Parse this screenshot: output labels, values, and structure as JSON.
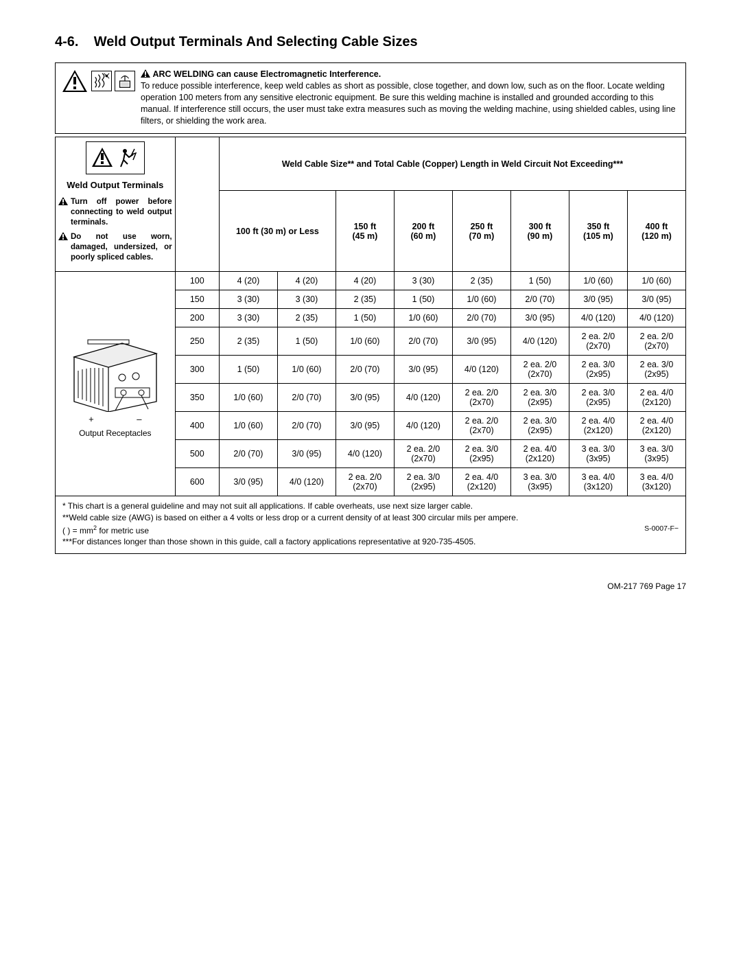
{
  "section": {
    "number": "4-6.",
    "title": "Weld Output Terminals And Selecting Cable Sizes"
  },
  "warning_box": {
    "heading": "ARC WELDING can cause Electromagnetic Interference.",
    "body": "To reduce possible interference, keep weld cables as short as possible, close together, and down low, such as on the floor. Locate welding operation 100 meters from any sensitive electronic equipment. Be sure this welding machine is installed and grounded according to this manual. If interference still occurs, the user must take extra measures such as moving the welding machine, using shielded cables, using line filters, or shielding the work area."
  },
  "left_header": {
    "title": "Weld Output Terminals",
    "warn1": "Turn off power before connecting to weld output terminals.",
    "warn2": "Do not use worn, damaged, undersized, or poorly spliced cables."
  },
  "span_header": "Weld Cable Size** and Total Cable (Copper) Length in Weld Circuit Not Exceeding***",
  "col_headers": {
    "c100_label": "100 ft (30 m) or Less",
    "c150a": "150 ft",
    "c150b": "(45 m)",
    "c200a": "200 ft",
    "c200b": "(60 m)",
    "c250a": "250 ft",
    "c250b": "(70 m)",
    "c300a": "300 ft",
    "c300b": "(90 m)",
    "c350a": "350 ft",
    "c350b": "(105 m)",
    "c400a": "400 ft",
    "c400b": "(120 m)"
  },
  "machine": {
    "plus": "+",
    "minus": "–",
    "label": "Output Receptacles"
  },
  "rows": [
    {
      "amp": "100",
      "c": [
        "4 (20)",
        "4 (20)",
        "4 (20)",
        "3 (30)",
        "2 (35)",
        "1 (50)",
        "1/0 (60)",
        "1/0 (60)"
      ]
    },
    {
      "amp": "150",
      "c": [
        "3 (30)",
        "3 (30)",
        "2 (35)",
        "1 (50)",
        "1/0 (60)",
        "2/0 (70)",
        "3/0 (95)",
        "3/0 (95)"
      ]
    },
    {
      "amp": "200",
      "c": [
        "3 (30)",
        "2 (35)",
        "1 (50)",
        "1/0 (60)",
        "2/0 (70)",
        "3/0 (95)",
        "4/0 (120)",
        "4/0 (120)"
      ]
    },
    {
      "amp": "250",
      "c": [
        "2 (35)",
        "1 (50)",
        "1/0 (60)",
        "2/0 (70)",
        "3/0 (95)",
        "4/0 (120)",
        "2 ea. 2/0 (2x70)",
        "2 ea. 2/0 (2x70)"
      ]
    },
    {
      "amp": "300",
      "c": [
        "1 (50)",
        "1/0 (60)",
        "2/0 (70)",
        "3/0 (95)",
        "4/0 (120)",
        "2 ea. 2/0 (2x70)",
        "2 ea. 3/0 (2x95)",
        "2 ea. 3/0 (2x95)"
      ]
    },
    {
      "amp": "350",
      "c": [
        "1/0 (60)",
        "2/0 (70)",
        "3/0 (95)",
        "4/0 (120)",
        "2 ea. 2/0 (2x70)",
        "2 ea. 3/0 (2x95)",
        "2 ea. 3/0 (2x95)",
        "2 ea. 4/0 (2x120)"
      ]
    },
    {
      "amp": "400",
      "c": [
        "1/0 (60)",
        "2/0 (70)",
        "3/0 (95)",
        "4/0 (120)",
        "2 ea. 2/0 (2x70)",
        "2 ea. 3/0 (2x95)",
        "2 ea. 4/0 (2x120)",
        "2 ea. 4/0 (2x120)"
      ]
    },
    {
      "amp": "500",
      "c": [
        "2/0 (70)",
        "3/0 (95)",
        "4/0 (120)",
        "2 ea. 2/0 (2x70)",
        "2 ea. 3/0 (2x95)",
        "2 ea. 4/0 (2x120)",
        "3 ea. 3/0 (3x95)",
        "3 ea. 3/0 (3x95)"
      ]
    },
    {
      "amp": "600",
      "c": [
        "3/0 (95)",
        "4/0 (120)",
        "2 ea. 2/0 (2x70)",
        "2 ea. 3/0 (2x95)",
        "2 ea. 4/0 (2x120)",
        "3 ea. 3/0 (3x95)",
        "3 ea. 4/0 (3x120)",
        "3 ea. 4/0 (3x120)"
      ]
    }
  ],
  "footnotes": {
    "f1": "* This chart is a general guideline and may not suit all applications. If cable overheats, use next size larger cable.",
    "f2a": "**Weld cable size (AWG) is based on either a 4 volts or less drop or a current density of at least 300 circular mils per ampere.",
    "f2b_prefix": "( ) = mm",
    "f2b_suffix": " for metric use",
    "f3": "***For distances longer than those shown in this guide, call a factory applications representative at 920-735-4505.",
    "docref": "S-0007-F−"
  },
  "page_footer": "OM-217 769 Page 17",
  "colors": {
    "text": "#000000",
    "bg": "#ffffff",
    "border": "#000000"
  },
  "table_layout": {
    "col_widths_pct": [
      19,
      7,
      9.25,
      9.25,
      9.25,
      9.25,
      9.25,
      9.25,
      9.25,
      9.25
    ]
  }
}
